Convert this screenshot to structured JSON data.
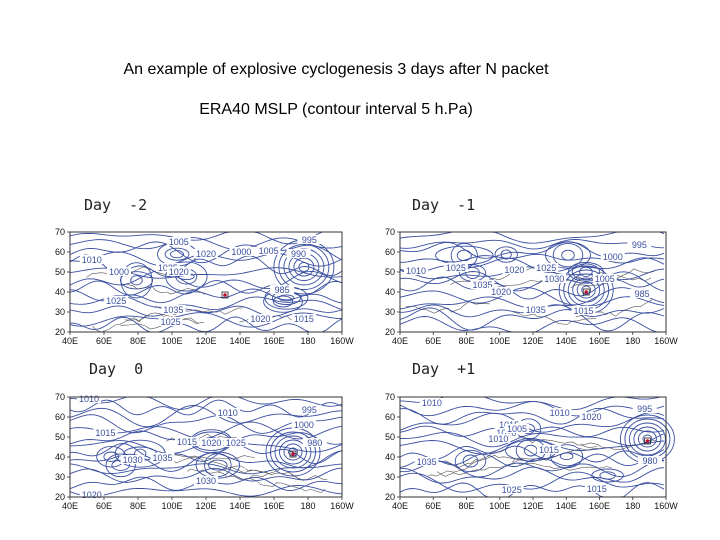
{
  "title": "An example of explosive cyclogenesis 3 days after N packet",
  "subtitle": "ERA40 MSLP (contour interval 5 h.Pa)",
  "colors": {
    "contour": "#3a4fa0",
    "coast": "#555555",
    "marker": "#c0102a"
  },
  "y_ticks": [
    "70",
    "60",
    "50",
    "40",
    "30",
    "20"
  ],
  "x_ticks": [
    "40E",
    "60E",
    "80E",
    "100E",
    "120E",
    "140E",
    "160E",
    "180",
    "160W"
  ],
  "panels": [
    {
      "label": "Day  -2",
      "isobars": [
        "1005",
        "1000",
        "995",
        "1010",
        "1020",
        "1005",
        "990",
        "1000",
        "1025",
        "985",
        "1025",
        "1020",
        "1035",
        "1025",
        "1020",
        "1015"
      ]
    },
    {
      "label": "Day  -1",
      "isobars": [
        "995",
        "1000",
        "1010",
        "1025",
        "1020",
        "1025",
        "1030",
        "1005",
        "1035",
        "985",
        "1020",
        "1035",
        "1015"
      ]
    },
    {
      "label": "Day  0",
      "isobars": [
        "1010",
        "995",
        "1010",
        "1015",
        "1000",
        "1015",
        "1020",
        "1025",
        "980",
        "1030",
        "1035",
        "1030",
        "1020"
      ]
    },
    {
      "label": "Day  +1",
      "isobars": [
        "1010",
        "1010",
        "1020",
        "1010",
        "995",
        "1015",
        "1005",
        "1010",
        "1035",
        "1015",
        "980",
        "1025",
        "1015"
      ]
    }
  ]
}
